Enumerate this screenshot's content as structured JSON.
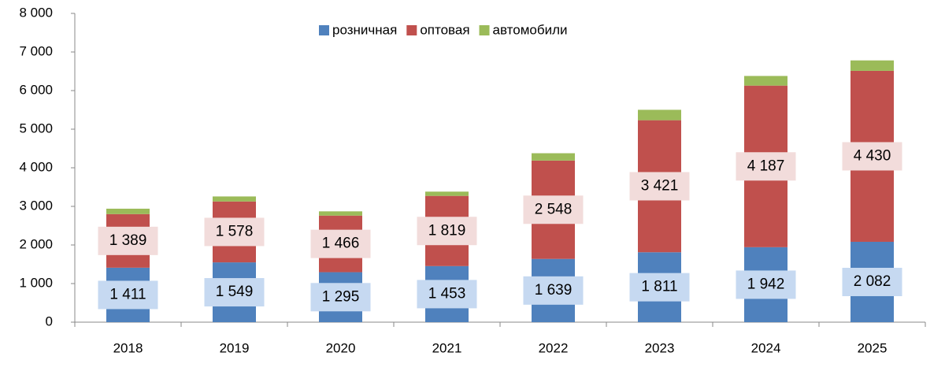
{
  "chart_data": {
    "type": "stacked_bar",
    "categories": [
      "2018",
      "2019",
      "2020",
      "2021",
      "2022",
      "2023",
      "2024",
      "2025"
    ],
    "series": [
      {
        "name": "розничная",
        "color": "#4f81bd",
        "values": [
          1411,
          1549,
          1295,
          1453,
          1639,
          1811,
          1942,
          2082
        ],
        "value_labels": [
          "1 411",
          "1 549",
          "1 295",
          "1 453",
          "1 639",
          "1 811",
          "1 942",
          "2 082"
        ],
        "label_color": "#c6d9f1"
      },
      {
        "name": "оптовая",
        "color": "#c0504d",
        "values": [
          1389,
          1578,
          1466,
          1819,
          2548,
          3421,
          4187,
          4430
        ],
        "value_labels": [
          "1 389",
          "1 578",
          "1 466",
          "1 819",
          "2 548",
          "3 421",
          "4 187",
          "4 430"
        ],
        "label_color": "#f2dcdb"
      },
      {
        "name": "автомобили",
        "color": "#9bbb59",
        "values": [
          140,
          130,
          110,
          110,
          190,
          270,
          250,
          270
        ]
      }
    ],
    "ylim": [
      0,
      8000
    ],
    "yticks": [
      0,
      {
        "value": 1000,
        "label": "1 000"
      },
      {
        "value": 2000,
        "label": "2 000"
      },
      {
        "value": 3000,
        "label": "3 000"
      },
      {
        "value": 4000,
        "label": "4 000"
      },
      {
        "value": 5000,
        "label": "5 000"
      },
      {
        "value": 6000,
        "label": "6 000"
      },
      {
        "value": 7000,
        "label": "7 000"
      },
      {
        "value": 8000,
        "label": "8 000"
      }
    ],
    "legend": "top"
  }
}
